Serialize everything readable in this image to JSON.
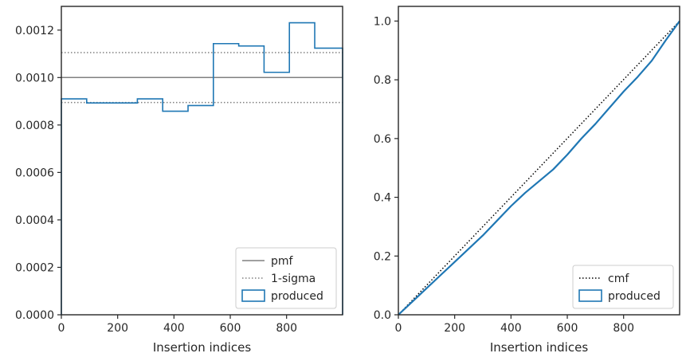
{
  "colors": {
    "pmf": "#808080",
    "sigma": "#808080",
    "produced": "#1f77b4",
    "cmf": "#000000",
    "axes": "#262626"
  },
  "chart_data": [
    {
      "type": "histogram",
      "xlabel": "Insertion indices",
      "ylabel": "",
      "xlim": [
        0,
        999
      ],
      "ylim": [
        0,
        0.0013
      ],
      "xticks": [
        0,
        200,
        400,
        600,
        800
      ],
      "xtick_labels": [
        "0",
        "200",
        "400",
        "600",
        "800"
      ],
      "yticks": [
        0,
        0.0002,
        0.0004,
        0.0006,
        0.0008,
        0.001,
        0.0012
      ],
      "ytick_labels": [
        "0.0000",
        "0.0002",
        "0.0004",
        "0.0006",
        "0.0008",
        "0.0010",
        "0.0012"
      ],
      "grid": false,
      "legend_position": "lower right",
      "legend": [
        {
          "key": "pmf",
          "label": "pmf",
          "style": "solid-line"
        },
        {
          "key": "sigma",
          "label": "1-sigma",
          "style": "dotted-line"
        },
        {
          "key": "produced",
          "label": "produced",
          "style": "box"
        }
      ],
      "pmf": 0.001,
      "sigma_band": [
        0.000895,
        0.001105
      ],
      "series": [
        {
          "key": "produced",
          "bin_edges": [
            0,
            90,
            180,
            270,
            360,
            450,
            540,
            630,
            720,
            810,
            900,
            999
          ],
          "values": [
            0.00091,
            0.000893,
            0.000893,
            0.00091,
            0.000858,
            0.000882,
            0.001143,
            0.001133,
            0.001022,
            0.001231,
            0.001124
          ]
        }
      ]
    },
    {
      "type": "line",
      "xlabel": "Insertion indices",
      "ylabel": "",
      "xlim": [
        0,
        999
      ],
      "ylim": [
        0,
        1.05
      ],
      "xticks": [
        0,
        200,
        400,
        600,
        800
      ],
      "xtick_labels": [
        "0",
        "200",
        "400",
        "600",
        "800"
      ],
      "yticks": [
        0,
        0.2,
        0.4,
        0.6,
        0.8,
        1.0
      ],
      "ytick_labels": [
        "0.0",
        "0.2",
        "0.4",
        "0.6",
        "0.8",
        "1.0"
      ],
      "grid": false,
      "legend_position": "lower right",
      "legend": [
        {
          "key": "cmf",
          "label": "cmf",
          "style": "dotted-line"
        },
        {
          "key": "produced",
          "label": "produced",
          "style": "box"
        }
      ],
      "series": [
        {
          "key": "cmf",
          "x": [
            0,
            999
          ],
          "y": [
            0,
            1.0
          ]
        },
        {
          "key": "produced",
          "x": [
            0,
            50,
            100,
            150,
            200,
            250,
            300,
            350,
            400,
            450,
            500,
            550,
            600,
            650,
            700,
            750,
            800,
            850,
            900,
            950,
            999
          ],
          "y": [
            0,
            0.045,
            0.09,
            0.135,
            0.18,
            0.225,
            0.27,
            0.32,
            0.37,
            0.415,
            0.455,
            0.495,
            0.545,
            0.6,
            0.65,
            0.705,
            0.76,
            0.81,
            0.865,
            0.935,
            1.0
          ]
        }
      ]
    }
  ]
}
